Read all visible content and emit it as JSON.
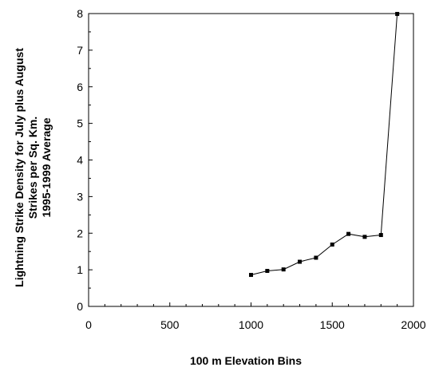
{
  "chart_data": {
    "type": "line",
    "xlabel": "100 m Elevation Bins",
    "ylabel_lines": [
      "Lightning Strike Density for July plus August",
      "Strikes per Sq. Km.",
      "1995-1999 Average"
    ],
    "xlim": [
      0,
      2000
    ],
    "ylim": [
      0,
      8
    ],
    "x_ticks": [
      0,
      500,
      1000,
      1500,
      2000
    ],
    "y_ticks": [
      0,
      1,
      2,
      3,
      4,
      5,
      6,
      7,
      8
    ],
    "x_tick_labels": [
      "0",
      "500",
      "1000",
      "1500",
      "2000"
    ],
    "y_tick_labels": [
      "0",
      "1",
      "2",
      "3",
      "4",
      "5",
      "6",
      "7",
      "8"
    ],
    "grid": false,
    "marker": "square",
    "series": [
      {
        "x": [
          1000,
          1100,
          1200,
          1300,
          1400,
          1500,
          1600,
          1700,
          1800,
          1900
        ],
        "y": [
          0.86,
          0.97,
          1.01,
          1.22,
          1.33,
          1.69,
          1.98,
          1.9,
          1.95,
          7.99
        ]
      }
    ],
    "colors": {
      "line": "#000000",
      "marker": "#000000",
      "axis": "#000000"
    }
  }
}
